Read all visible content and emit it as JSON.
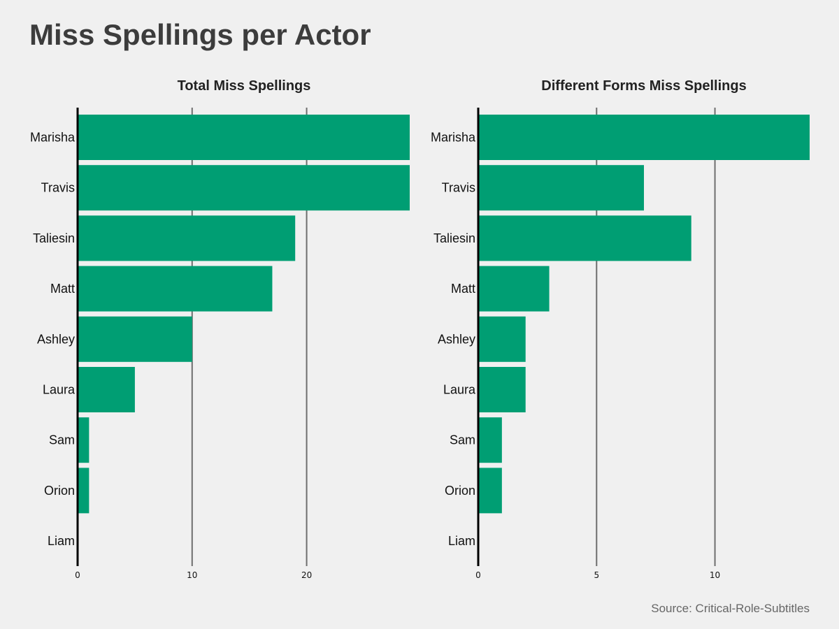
{
  "title": "Miss Spellings per Actor",
  "source": "Source: Critical-Role-Subtitles",
  "colors": {
    "bar": "#009e73",
    "grid": "#6e6e6e",
    "axis": "#000000",
    "background": "#f0f0f0"
  },
  "chart_data": [
    {
      "type": "bar",
      "orientation": "horizontal",
      "title": "Total Miss Spellings",
      "categories": [
        "Marisha",
        "Travis",
        "Taliesin",
        "Matt",
        "Ashley",
        "Laura",
        "Sam",
        "Orion",
        "Liam"
      ],
      "values": [
        29,
        29,
        19,
        17,
        10,
        5,
        1,
        1,
        0
      ],
      "xticks": [
        0,
        10,
        20
      ],
      "xlim": [
        0,
        29
      ],
      "grid": true
    },
    {
      "type": "bar",
      "orientation": "horizontal",
      "title": "Different Forms Miss Spellings",
      "categories": [
        "Marisha",
        "Travis",
        "Taliesin",
        "Matt",
        "Ashley",
        "Laura",
        "Sam",
        "Orion",
        "Liam"
      ],
      "values": [
        14,
        7,
        9,
        3,
        2,
        2,
        1,
        1,
        0
      ],
      "xticks": [
        0,
        5,
        10
      ],
      "xlim": [
        0,
        14
      ],
      "grid": true
    }
  ]
}
